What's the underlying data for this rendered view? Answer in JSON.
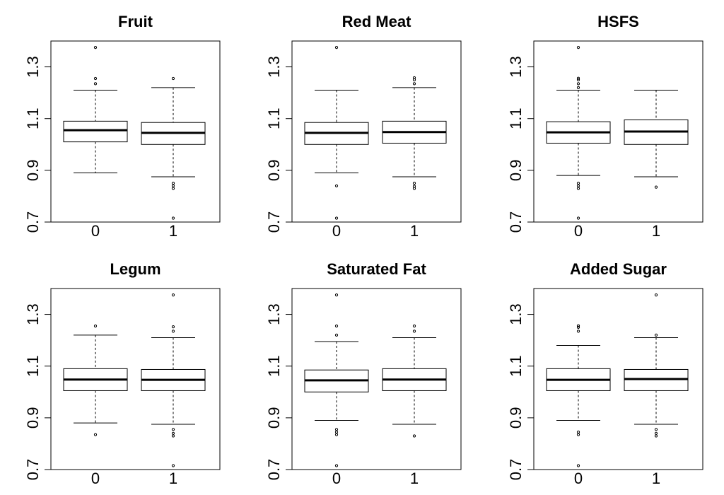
{
  "chart_data": [
    {
      "type": "box",
      "title": "Fruit",
      "categories": [
        "0",
        "1"
      ],
      "y_ticks": [
        "0.7",
        "0.9",
        "1.1",
        "1.3"
      ],
      "ylim": [
        0.7,
        1.4
      ],
      "boxes": [
        {
          "category": "0",
          "whisker_low": 0.89,
          "q1": 1.01,
          "median": 1.055,
          "q3": 1.09,
          "whisker_high": 1.21,
          "outliers": [
            1.235,
            1.255,
            1.375
          ]
        },
        {
          "category": "1",
          "whisker_low": 0.875,
          "q1": 1.0,
          "median": 1.045,
          "q3": 1.085,
          "whisker_high": 1.22,
          "outliers": [
            0.715,
            0.83,
            0.84,
            0.85,
            1.255
          ]
        }
      ]
    },
    {
      "type": "box",
      "title": "Red Meat",
      "categories": [
        "0",
        "1"
      ],
      "y_ticks": [
        "0.7",
        "0.9",
        "1.1",
        "1.3"
      ],
      "ylim": [
        0.7,
        1.4
      ],
      "boxes": [
        {
          "category": "0",
          "whisker_low": 0.89,
          "q1": 1.0,
          "median": 1.045,
          "q3": 1.085,
          "whisker_high": 1.21,
          "outliers": [
            0.715,
            0.84,
            1.375
          ]
        },
        {
          "category": "1",
          "whisker_low": 0.875,
          "q1": 1.005,
          "median": 1.048,
          "q3": 1.09,
          "whisker_high": 1.22,
          "outliers": [
            0.83,
            0.838,
            0.85,
            1.235,
            1.25,
            1.258
          ]
        }
      ]
    },
    {
      "type": "box",
      "title": "HSFS",
      "categories": [
        "0",
        "1"
      ],
      "y_ticks": [
        "0.7",
        "0.9",
        "1.1",
        "1.3"
      ],
      "ylim": [
        0.7,
        1.4
      ],
      "boxes": [
        {
          "category": "0",
          "whisker_low": 0.88,
          "q1": 1.005,
          "median": 1.047,
          "q3": 1.088,
          "whisker_high": 1.21,
          "outliers": [
            0.715,
            0.83,
            0.84,
            0.85,
            1.22,
            1.235,
            1.25,
            1.256,
            1.375
          ]
        },
        {
          "category": "1",
          "whisker_low": 0.875,
          "q1": 1.0,
          "median": 1.05,
          "q3": 1.095,
          "whisker_high": 1.21,
          "outliers": [
            0.835
          ]
        }
      ]
    },
    {
      "type": "box",
      "title": "Legum",
      "categories": [
        "0",
        "1"
      ],
      "y_ticks": [
        "0.7",
        "0.9",
        "1.1",
        "1.3"
      ],
      "ylim": [
        0.7,
        1.4
      ],
      "boxes": [
        {
          "category": "0",
          "whisker_low": 0.88,
          "q1": 1.005,
          "median": 1.048,
          "q3": 1.09,
          "whisker_high": 1.22,
          "outliers": [
            0.835,
            1.255
          ]
        },
        {
          "category": "1",
          "whisker_low": 0.875,
          "q1": 1.005,
          "median": 1.047,
          "q3": 1.087,
          "whisker_high": 1.21,
          "outliers": [
            0.715,
            0.83,
            0.84,
            0.855,
            1.235,
            1.252,
            1.375
          ]
        }
      ]
    },
    {
      "type": "box",
      "title": "Saturated Fat",
      "categories": [
        "0",
        "1"
      ],
      "y_ticks": [
        "0.7",
        "0.9",
        "1.1",
        "1.3"
      ],
      "ylim": [
        0.7,
        1.4
      ],
      "boxes": [
        {
          "category": "0",
          "whisker_low": 0.89,
          "q1": 1.0,
          "median": 1.045,
          "q3": 1.085,
          "whisker_high": 1.195,
          "outliers": [
            0.715,
            0.835,
            0.845,
            0.855,
            1.22,
            1.255,
            1.375
          ]
        },
        {
          "category": "1",
          "whisker_low": 0.875,
          "q1": 1.005,
          "median": 1.048,
          "q3": 1.09,
          "whisker_high": 1.21,
          "outliers": [
            0.83,
            1.235,
            1.255
          ]
        }
      ]
    },
    {
      "type": "box",
      "title": "Added Sugar",
      "categories": [
        "0",
        "1"
      ],
      "y_ticks": [
        "0.7",
        "0.9",
        "1.1",
        "1.3"
      ],
      "ylim": [
        0.7,
        1.4
      ],
      "boxes": [
        {
          "category": "0",
          "whisker_low": 0.89,
          "q1": 1.005,
          "median": 1.047,
          "q3": 1.09,
          "whisker_high": 1.18,
          "outliers": [
            0.715,
            0.835,
            0.845,
            1.235,
            1.25,
            1.256
          ]
        },
        {
          "category": "1",
          "whisker_low": 0.875,
          "q1": 1.005,
          "median": 1.05,
          "q3": 1.087,
          "whisker_high": 1.21,
          "outliers": [
            0.83,
            0.84,
            0.855,
            1.22,
            1.375
          ]
        }
      ]
    }
  ]
}
